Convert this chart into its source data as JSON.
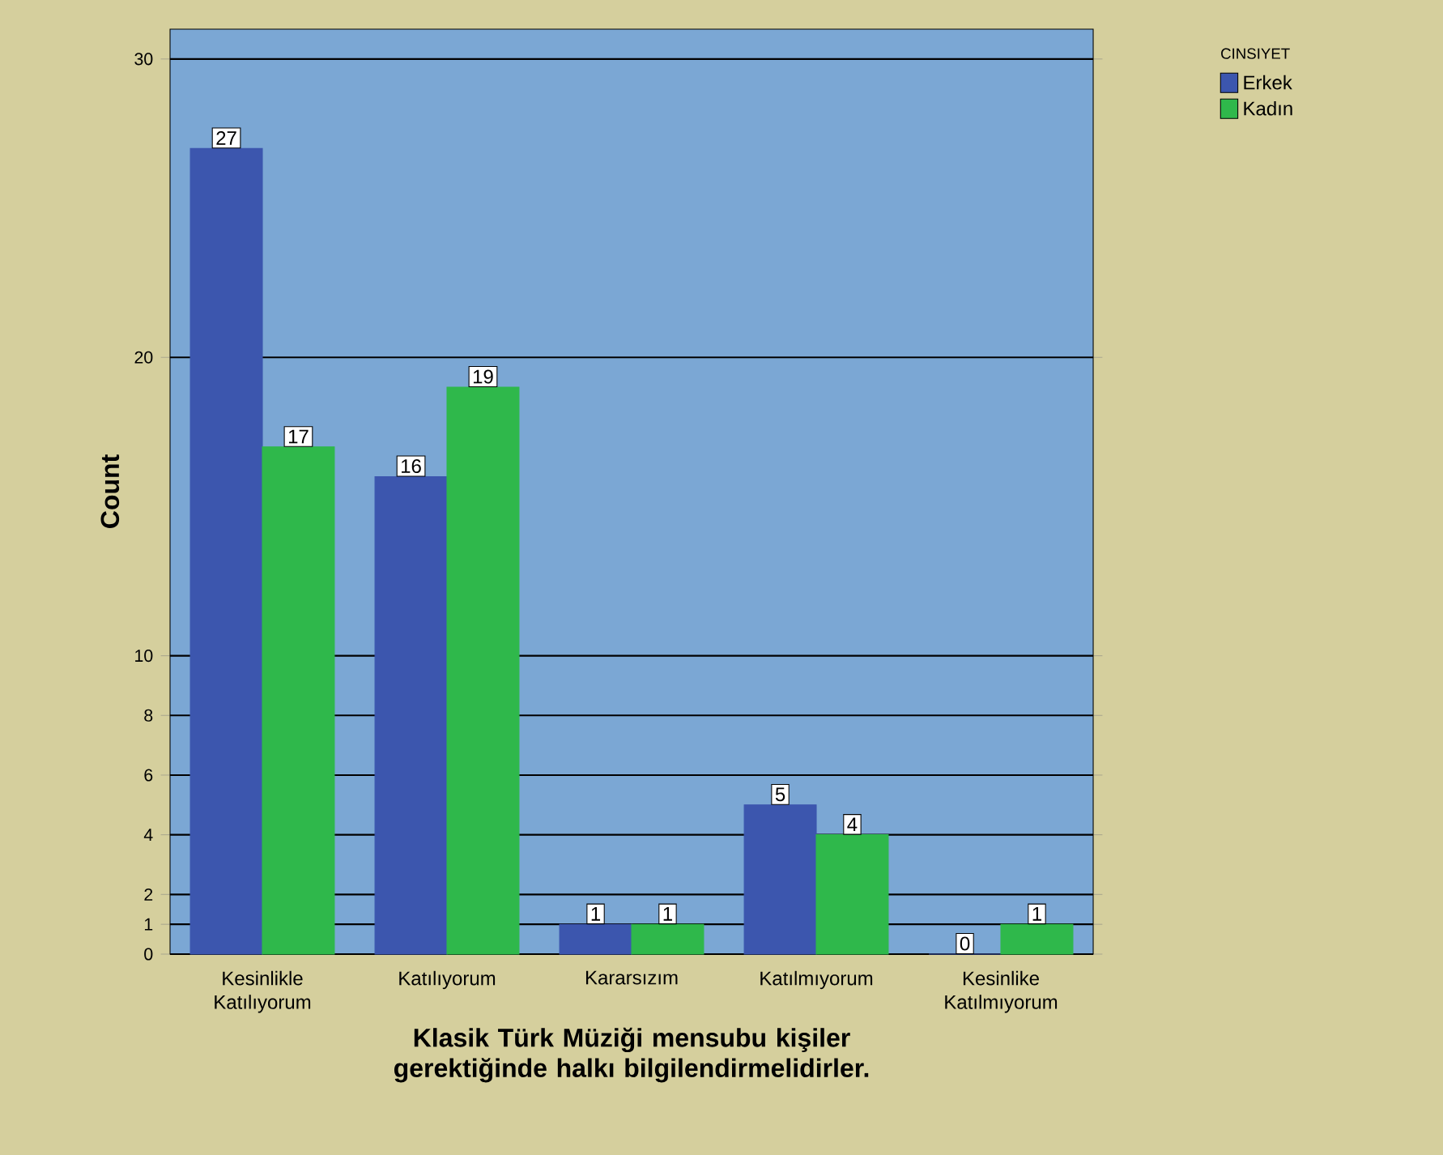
{
  "chart_data": {
    "type": "bar",
    "xlabel": "Klasik Türk Müziği mensubu kişiler gerektiğinde halkı bilgilendirmelidirler.",
    "ylabel": "Count",
    "legend_title": "CINSIYET",
    "categories": [
      "Kesinlikle Katılıyorum",
      "Katılıyorum",
      "Kararsızım",
      "Katılmıyorum",
      "Kesinlike Katılmıyorum"
    ],
    "series": [
      {
        "name": "Erkek",
        "color": "#3c56ae",
        "values": [
          27,
          16,
          1,
          5,
          0
        ]
      },
      {
        "name": "Kadın",
        "color": "#2fb84b",
        "values": [
          17,
          19,
          1,
          4,
          1
        ]
      }
    ],
    "ylim": [
      0,
      31
    ],
    "yticks": [
      0,
      1,
      2,
      4,
      6,
      8,
      10,
      20,
      30
    ],
    "grid": "y",
    "legend": "top right",
    "data_labels": true
  }
}
